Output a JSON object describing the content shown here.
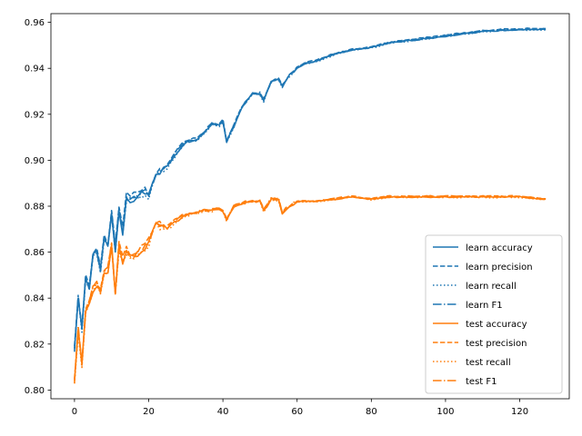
{
  "chart_data": {
    "type": "line",
    "title": "",
    "xlabel": "",
    "ylabel": "",
    "xlim": [
      -6.35,
      133.35
    ],
    "ylim": [
      0.7962,
      0.9638
    ],
    "xticks": [
      0,
      20,
      40,
      60,
      80,
      100,
      120
    ],
    "yticks": [
      0.8,
      0.82,
      0.84,
      0.86,
      0.88,
      0.9,
      0.92,
      0.94,
      0.96
    ],
    "grid": false,
    "legend_position": "lower right",
    "colors": {
      "learn": "#1f77b4",
      "test": "#ff7f0e"
    },
    "anchors": {
      "learn": [
        [
          0,
          0.818
        ],
        [
          1,
          0.84
        ],
        [
          2,
          0.826
        ],
        [
          3,
          0.848
        ],
        [
          4,
          0.845
        ],
        [
          5,
          0.858
        ],
        [
          6,
          0.86
        ],
        [
          7,
          0.852
        ],
        [
          8,
          0.866
        ],
        [
          9,
          0.862
        ],
        [
          10,
          0.876
        ],
        [
          11,
          0.861
        ],
        [
          12,
          0.878
        ],
        [
          13,
          0.868
        ],
        [
          14,
          0.884
        ],
        [
          15,
          0.883
        ],
        [
          17,
          0.884
        ],
        [
          19,
          0.886
        ],
        [
          20,
          0.884
        ],
        [
          22,
          0.894
        ],
        [
          25,
          0.897
        ],
        [
          27,
          0.902
        ],
        [
          30,
          0.908
        ],
        [
          33,
          0.909
        ],
        [
          35,
          0.912
        ],
        [
          37,
          0.916
        ],
        [
          39,
          0.915
        ],
        [
          40,
          0.917
        ],
        [
          41,
          0.908
        ],
        [
          43,
          0.915
        ],
        [
          45,
          0.923
        ],
        [
          48,
          0.929
        ],
        [
          50,
          0.929
        ],
        [
          51,
          0.926
        ],
        [
          53,
          0.934
        ],
        [
          55,
          0.935
        ],
        [
          56,
          0.932
        ],
        [
          58,
          0.937
        ],
        [
          60,
          0.94
        ],
        [
          62,
          0.942
        ],
        [
          65,
          0.943
        ],
        [
          70,
          0.946
        ],
        [
          75,
          0.948
        ],
        [
          80,
          0.949
        ],
        [
          85,
          0.951
        ],
        [
          90,
          0.952
        ],
        [
          95,
          0.953
        ],
        [
          100,
          0.954
        ],
        [
          105,
          0.955
        ],
        [
          110,
          0.956
        ],
        [
          115,
          0.9565
        ],
        [
          120,
          0.9568
        ],
        [
          127,
          0.957
        ]
      ],
      "test": [
        [
          0,
          0.803
        ],
        [
          1,
          0.826
        ],
        [
          2,
          0.811
        ],
        [
          3,
          0.834
        ],
        [
          4,
          0.838
        ],
        [
          5,
          0.844
        ],
        [
          6,
          0.846
        ],
        [
          7,
          0.842
        ],
        [
          8,
          0.851
        ],
        [
          9,
          0.852
        ],
        [
          10,
          0.862
        ],
        [
          11,
          0.842
        ],
        [
          12,
          0.862
        ],
        [
          13,
          0.856
        ],
        [
          14,
          0.86
        ],
        [
          15,
          0.858
        ],
        [
          17,
          0.859
        ],
        [
          19,
          0.862
        ],
        [
          20,
          0.864
        ],
        [
          22,
          0.872
        ],
        [
          25,
          0.87
        ],
        [
          27,
          0.873
        ],
        [
          30,
          0.876
        ],
        [
          33,
          0.877
        ],
        [
          35,
          0.878
        ],
        [
          37,
          0.878
        ],
        [
          39,
          0.879
        ],
        [
          40,
          0.878
        ],
        [
          41,
          0.874
        ],
        [
          43,
          0.88
        ],
        [
          45,
          0.881
        ],
        [
          47,
          0.882
        ],
        [
          50,
          0.882
        ],
        [
          51,
          0.878
        ],
        [
          53,
          0.883
        ],
        [
          55,
          0.883
        ],
        [
          56,
          0.877
        ],
        [
          58,
          0.88
        ],
        [
          60,
          0.882
        ],
        [
          65,
          0.882
        ],
        [
          70,
          0.883
        ],
        [
          75,
          0.884
        ],
        [
          80,
          0.883
        ],
        [
          85,
          0.884
        ],
        [
          90,
          0.884
        ],
        [
          95,
          0.884
        ],
        [
          100,
          0.884
        ],
        [
          105,
          0.884
        ],
        [
          110,
          0.884
        ],
        [
          115,
          0.884
        ],
        [
          120,
          0.884
        ],
        [
          127,
          0.883
        ]
      ]
    },
    "series": [
      {
        "name": "learn accuracy",
        "group": "learn",
        "style": "solid",
        "offset": 0.0,
        "seed": 1
      },
      {
        "name": "learn precision",
        "group": "learn",
        "style": "dashed",
        "offset": 0.0015,
        "seed": 2
      },
      {
        "name": "learn recall",
        "group": "learn",
        "style": "dotted",
        "offset": -0.0005,
        "seed": 3
      },
      {
        "name": "learn F1",
        "group": "learn",
        "style": "dashdot",
        "offset": 0.0005,
        "seed": 4
      },
      {
        "name": "test accuracy",
        "group": "test",
        "style": "solid",
        "offset": 0.0,
        "seed": 5
      },
      {
        "name": "test precision",
        "group": "test",
        "style": "dashed",
        "offset": 0.0012,
        "seed": 6
      },
      {
        "name": "test recall",
        "group": "test",
        "style": "dotted",
        "offset": -0.0004,
        "seed": 7
      },
      {
        "name": "test F1",
        "group": "test",
        "style": "dashdot",
        "offset": 0.0006,
        "seed": 8
      }
    ]
  }
}
